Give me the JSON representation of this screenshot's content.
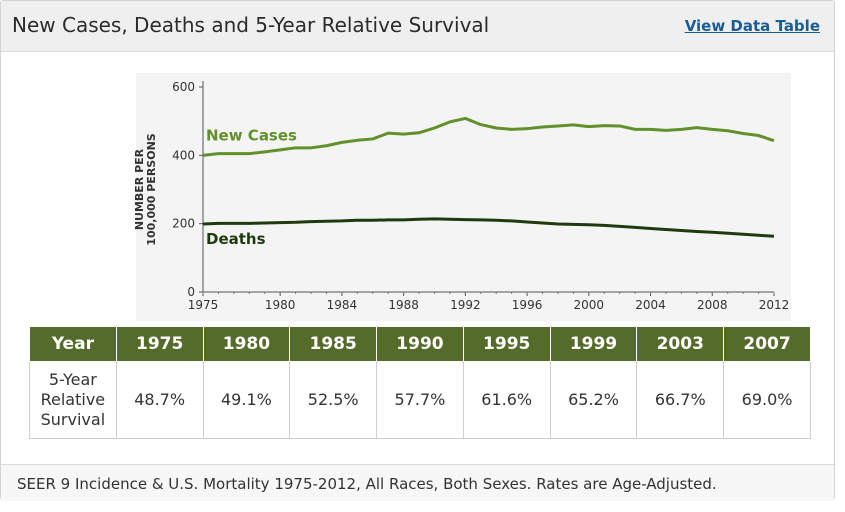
{
  "header": {
    "title": "New Cases, Deaths and 5-Year Relative Survival",
    "link_label": "View Data Table"
  },
  "chart_data": {
    "type": "line",
    "ylabel_line1": "NUMBER PER",
    "ylabel_line2": "100,000 PERSONS",
    "xlim": [
      1975,
      2012
    ],
    "ylim": [
      0,
      600
    ],
    "x_ticks": [
      "1975",
      "1980",
      "1984",
      "1988",
      "1992",
      "1996",
      "2000",
      "2004",
      "2008",
      "2012"
    ],
    "y_ticks": [
      "0",
      "200",
      "400",
      "600"
    ],
    "grid": false,
    "legend": "inline labels",
    "x": [
      1975,
      1976,
      1977,
      1978,
      1979,
      1980,
      1981,
      1982,
      1983,
      1984,
      1985,
      1986,
      1987,
      1988,
      1989,
      1990,
      1991,
      1992,
      1993,
      1994,
      1995,
      1996,
      1997,
      1998,
      1999,
      2000,
      2001,
      2002,
      2003,
      2004,
      2005,
      2006,
      2007,
      2008,
      2009,
      2010,
      2011,
      2012
    ],
    "series": [
      {
        "name": "New Cases",
        "color": "#62902a",
        "values": [
          400,
          405,
          405,
          405,
          410,
          416,
          422,
          422,
          428,
          438,
          444,
          448,
          465,
          462,
          466,
          480,
          498,
          508,
          490,
          480,
          476,
          478,
          483,
          486,
          489,
          484,
          487,
          486,
          476,
          476,
          473,
          476,
          481,
          476,
          472,
          464,
          458,
          443
        ]
      },
      {
        "name": "Deaths",
        "color": "#1f3a0e",
        "values": [
          199,
          201,
          201,
          201,
          202,
          203,
          204,
          206,
          207,
          208,
          210,
          210,
          211,
          211,
          213,
          214,
          213,
          212,
          211,
          210,
          208,
          205,
          202,
          199,
          198,
          197,
          195,
          192,
          189,
          186,
          183,
          180,
          177,
          175,
          172,
          169,
          166,
          163
        ]
      }
    ]
  },
  "table": {
    "header_label": "Year",
    "row_label": "5-Year\nRelative\nSurvival",
    "years": [
      "1975",
      "1980",
      "1985",
      "1990",
      "1995",
      "1999",
      "2003",
      "2007"
    ],
    "values": [
      "48.7%",
      "49.1%",
      "52.5%",
      "57.7%",
      "61.6%",
      "65.2%",
      "66.7%",
      "69.0%"
    ]
  },
  "footer": {
    "note": "SEER 9 Incidence & U.S. Mortality 1975-2012, All Races, Both Sexes. Rates are Age-Adjusted."
  }
}
